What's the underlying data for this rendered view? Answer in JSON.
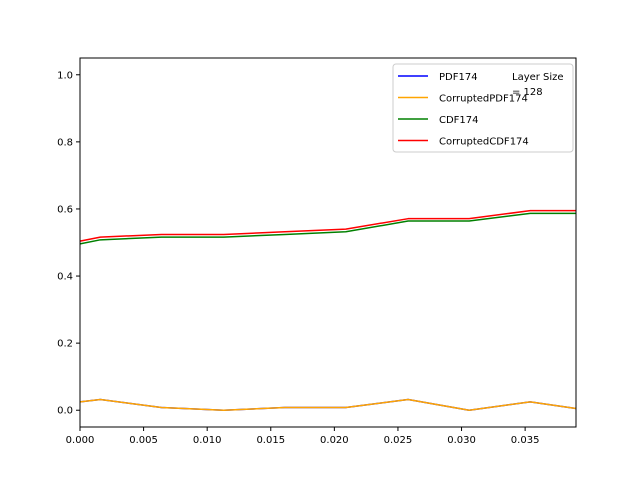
{
  "chart_data": {
    "type": "line",
    "title": "",
    "xlabel": "",
    "ylabel": "",
    "xlim": [
      0.0,
      0.039
    ],
    "ylim": [
      -0.05,
      1.05
    ],
    "x_ticks": [
      0.0,
      0.005,
      0.01,
      0.015,
      0.02,
      0.025,
      0.03,
      0.035
    ],
    "x_tick_labels": [
      "0.000",
      "0.005",
      "0.010",
      "0.015",
      "0.020",
      "0.025",
      "0.030",
      "0.035"
    ],
    "y_ticks": [
      0.0,
      0.2,
      0.4,
      0.6,
      0.8,
      1.0
    ],
    "y_tick_labels": [
      "0.0",
      "0.2",
      "0.4",
      "0.6",
      "0.8",
      "1.0"
    ],
    "grid": false,
    "legend_position": "top-right",
    "annotation": {
      "lines": [
        "Layer Size",
        "= 128"
      ]
    },
    "x": [
      0.0,
      0.0016,
      0.0064,
      0.0113,
      0.0161,
      0.0209,
      0.0258,
      0.0306,
      0.0354,
      0.039
    ],
    "series": [
      {
        "name": "PDF174",
        "color": "#0000ff",
        "values": [
          0.025,
          0.032,
          0.008,
          0.0,
          0.008,
          0.008,
          0.032,
          0.0,
          0.025,
          0.005
        ]
      },
      {
        "name": "CorruptedPDF174",
        "color": "#ffa500",
        "values": [
          0.025,
          0.032,
          0.008,
          0.0,
          0.008,
          0.008,
          0.032,
          0.0,
          0.025,
          0.005
        ]
      },
      {
        "name": "CDF174",
        "color": "#008000",
        "values": [
          0.496,
          0.508,
          0.516,
          0.516,
          0.524,
          0.532,
          0.564,
          0.564,
          0.587,
          0.587
        ]
      },
      {
        "name": "CorruptedCDF174",
        "color": "#ff0000",
        "values": [
          0.504,
          0.516,
          0.524,
          0.524,
          0.532,
          0.54,
          0.571,
          0.571,
          0.595,
          0.595
        ]
      }
    ]
  }
}
